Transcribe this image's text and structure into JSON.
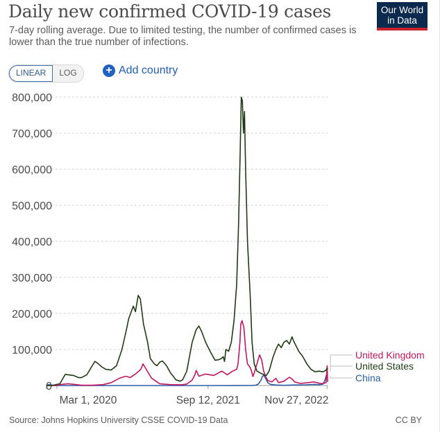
{
  "header": {
    "title": "Daily new confirmed COVID-19 cases",
    "subtitle": "7-day rolling average. Due to limited testing, the number of confirmed cases is lower than the true number of infections.",
    "logo_line1": "Our World",
    "logo_line2": "in Data"
  },
  "controls": {
    "scale_options": [
      "LINEAR",
      "LOG"
    ],
    "active_scale": "LINEAR",
    "add_country_label": "Add country",
    "add_icon": "plus-circle-icon"
  },
  "footer": {
    "source": "Source: Johns Hopkins University CSSE COVID-19 Data",
    "license": "CC BY"
  },
  "colors": {
    "united_states": "#1d3b13",
    "united_kingdom": "#c3155e",
    "china": "#2a5ca8",
    "grid": "#cfcfcf",
    "axis_text": "#4a4a4a"
  },
  "chart_data": {
    "type": "line",
    "title": "Daily new confirmed COVID-19 cases",
    "xlabel": "",
    "ylabel": "",
    "x_unit": "days since Jan 22, 2020",
    "x_range": [
      0,
      1042
    ],
    "ylim": [
      0,
      800000
    ],
    "y_ticks": [
      0,
      100000,
      200000,
      300000,
      400000,
      500000,
      600000,
      700000,
      800000
    ],
    "y_tick_labels": [
      "0",
      "100,000",
      "200,000",
      "300,000",
      "400,000",
      "500,000",
      "600,000",
      "700,000",
      "800,000"
    ],
    "x_ticks": [
      39,
      599,
      1040
    ],
    "x_tick_labels": [
      "Mar 1, 2020",
      "Sep 12, 2021",
      "Nov 27, 2022"
    ],
    "grid": true,
    "legend_placement": "right-end-labels",
    "series": [
      {
        "name": "United Kingdom",
        "key": "united_kingdom",
        "points": [
          [
            0,
            0
          ],
          [
            40,
            100
          ],
          [
            60,
            3500
          ],
          [
            80,
            5000
          ],
          [
            100,
            3500
          ],
          [
            130,
            800
          ],
          [
            170,
            700
          ],
          [
            210,
            2500
          ],
          [
            240,
            8000
          ],
          [
            270,
            20000
          ],
          [
            290,
            25000
          ],
          [
            300,
            25000
          ],
          [
            310,
            22000
          ],
          [
            330,
            32000
          ],
          [
            350,
            45000
          ],
          [
            358,
            60000
          ],
          [
            370,
            45000
          ],
          [
            390,
            20000
          ],
          [
            420,
            5000
          ],
          [
            460,
            2500
          ],
          [
            500,
            2200
          ],
          [
            520,
            4000
          ],
          [
            540,
            15000
          ],
          [
            550,
            30000
          ],
          [
            555,
            42000
          ],
          [
            565,
            26000
          ],
          [
            590,
            32000
          ],
          [
            620,
            28000
          ],
          [
            650,
            40000
          ],
          [
            670,
            30000
          ],
          [
            690,
            40000
          ],
          [
            705,
            45000
          ],
          [
            710,
            60000
          ],
          [
            717,
            120000
          ],
          [
            720,
            170000
          ],
          [
            725,
            180000
          ],
          [
            732,
            160000
          ],
          [
            738,
            100000
          ],
          [
            745,
            60000
          ],
          [
            755,
            50000
          ],
          [
            760,
            40000
          ],
          [
            765,
            25000
          ],
          [
            770,
            35000
          ],
          [
            780,
            60000
          ],
          [
            790,
            85000
          ],
          [
            798,
            70000
          ],
          [
            805,
            40000
          ],
          [
            812,
            25000
          ],
          [
            820,
            14000
          ],
          [
            835,
            10000
          ],
          [
            850,
            20000
          ],
          [
            860,
            8000
          ],
          [
            880,
            12000
          ],
          [
            900,
            23000
          ],
          [
            910,
            18000
          ],
          [
            920,
            10000
          ],
          [
            940,
            6000
          ],
          [
            970,
            8000
          ],
          [
            990,
            10000
          ],
          [
            1020,
            5000
          ],
          [
            1036,
            8000
          ],
          [
            1040,
            55000
          ],
          [
            1042,
            10000
          ]
        ]
      },
      {
        "name": "United States",
        "key": "united_states",
        "points": [
          [
            0,
            0
          ],
          [
            20,
            0
          ],
          [
            50,
            5000
          ],
          [
            70,
            31000
          ],
          [
            80,
            30000
          ],
          [
            100,
            28000
          ],
          [
            120,
            22000
          ],
          [
            130,
            22000
          ],
          [
            150,
            30000
          ],
          [
            170,
            55000
          ],
          [
            180,
            67000
          ],
          [
            190,
            62000
          ],
          [
            205,
            52000
          ],
          [
            220,
            45000
          ],
          [
            240,
            43000
          ],
          [
            260,
            55000
          ],
          [
            280,
            100000
          ],
          [
            295,
            150000
          ],
          [
            305,
            185000
          ],
          [
            312,
            200000
          ],
          [
            322,
            220000
          ],
          [
            330,
            205000
          ],
          [
            340,
            250000
          ],
          [
            348,
            240000
          ],
          [
            360,
            170000
          ],
          [
            375,
            120000
          ],
          [
            385,
            75000
          ],
          [
            400,
            60000
          ],
          [
            410,
            55000
          ],
          [
            420,
            65000
          ],
          [
            430,
            68000
          ],
          [
            445,
            55000
          ],
          [
            460,
            35000
          ],
          [
            480,
            16000
          ],
          [
            495,
            12000
          ],
          [
            505,
            16000
          ],
          [
            520,
            40000
          ],
          [
            540,
            120000
          ],
          [
            555,
            155000
          ],
          [
            565,
            165000
          ],
          [
            575,
            150000
          ],
          [
            590,
            120000
          ],
          [
            610,
            90000
          ],
          [
            625,
            70000
          ],
          [
            640,
            72000
          ],
          [
            648,
            75000
          ],
          [
            655,
            80000
          ],
          [
            660,
            67000
          ],
          [
            665,
            100000
          ],
          [
            675,
            95000
          ],
          [
            685,
            120000
          ],
          [
            695,
            180000
          ],
          [
            705,
            280000
          ],
          [
            712,
            450000
          ],
          [
            718,
            650000
          ],
          [
            722,
            800000
          ],
          [
            726,
            790000
          ],
          [
            730,
            700000
          ],
          [
            734,
            760000
          ],
          [
            738,
            600000
          ],
          [
            745,
            400000
          ],
          [
            755,
            250000
          ],
          [
            762,
            120000
          ],
          [
            770,
            60000
          ],
          [
            780,
            40000
          ],
          [
            790,
            36000
          ],
          [
            805,
            30000
          ],
          [
            815,
            28000
          ],
          [
            825,
            40000
          ],
          [
            840,
            80000
          ],
          [
            850,
            100000
          ],
          [
            860,
            115000
          ],
          [
            870,
            105000
          ],
          [
            880,
            120000
          ],
          [
            890,
            125000
          ],
          [
            900,
            115000
          ],
          [
            910,
            135000
          ],
          [
            915,
            125000
          ],
          [
            925,
            110000
          ],
          [
            935,
            95000
          ],
          [
            950,
            80000
          ],
          [
            965,
            60000
          ],
          [
            980,
            45000
          ],
          [
            995,
            38000
          ],
          [
            1010,
            40000
          ],
          [
            1025,
            38000
          ],
          [
            1035,
            42000
          ],
          [
            1040,
            48000
          ],
          [
            1042,
            45000
          ]
        ]
      },
      {
        "name": "China",
        "key": "china",
        "points": [
          [
            0,
            500
          ],
          [
            10,
            2500
          ],
          [
            18,
            1500
          ],
          [
            30,
            300
          ],
          [
            60,
            50
          ],
          [
            200,
            30
          ],
          [
            400,
            50
          ],
          [
            600,
            50
          ],
          [
            700,
            150
          ],
          [
            760,
            300
          ],
          [
            775,
            1000
          ],
          [
            785,
            4000
          ],
          [
            795,
            15000
          ],
          [
            800,
            25000
          ],
          [
            806,
            28000
          ],
          [
            812,
            20000
          ],
          [
            820,
            8000
          ],
          [
            830,
            3000
          ],
          [
            850,
            1500
          ],
          [
            880,
            500
          ],
          [
            920,
            1500
          ],
          [
            960,
            2000
          ],
          [
            990,
            3000
          ],
          [
            1010,
            2500
          ],
          [
            1025,
            4000
          ],
          [
            1032,
            15000
          ],
          [
            1037,
            28000
          ],
          [
            1042,
            31000
          ]
        ]
      }
    ]
  }
}
